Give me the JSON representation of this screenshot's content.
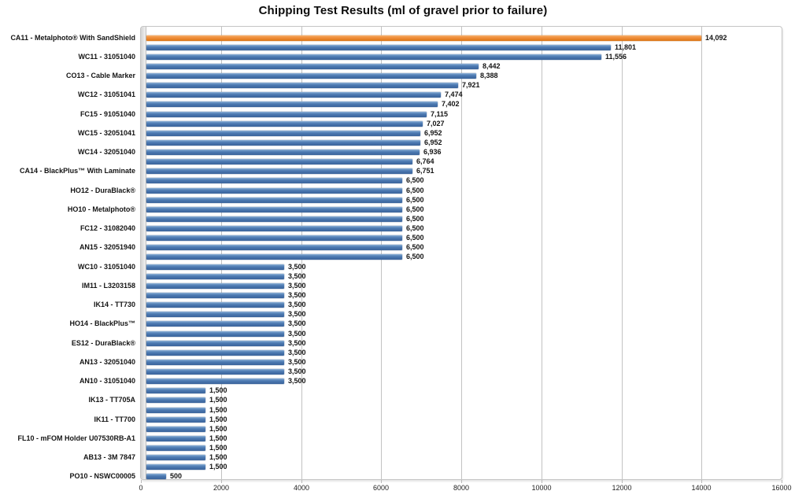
{
  "chart_data": {
    "type": "bar",
    "orientation": "horizontal",
    "title": "Chipping Test Results (ml of gravel prior to failure)",
    "xlabel": "",
    "ylabel": "",
    "xlim": [
      0,
      16000
    ],
    "x_ticks": [
      0,
      2000,
      4000,
      6000,
      8000,
      10000,
      12000,
      14000,
      16000
    ],
    "grid": true,
    "legend": false,
    "value_labels": true,
    "colors": {
      "bar_default": "#4A77B0",
      "bar_highlight": "#EE8B36",
      "gridline": "#C2C2C2",
      "axis_text": "#222222"
    },
    "bars": [
      {
        "label": "CA11 - Metalphoto® With SandShield",
        "value": 14092,
        "highlight": true
      },
      {
        "label": "",
        "value": 11801
      },
      {
        "label": "WC11 - 31051040",
        "value": 11556
      },
      {
        "label": "",
        "value": 8442
      },
      {
        "label": "CO13 - Cable Marker",
        "value": 8388
      },
      {
        "label": "",
        "value": 7921
      },
      {
        "label": "WC12 - 31051041",
        "value": 7474
      },
      {
        "label": "",
        "value": 7402
      },
      {
        "label": "FC15 - 91051040",
        "value": 7115
      },
      {
        "label": "",
        "value": 7027
      },
      {
        "label": "WC15 - 32051041",
        "value": 6952
      },
      {
        "label": "",
        "value": 6952
      },
      {
        "label": "WC14 - 32051040",
        "value": 6936
      },
      {
        "label": "",
        "value": 6764
      },
      {
        "label": "CA14 - BlackPlus™ With Laminate",
        "value": 6751
      },
      {
        "label": "",
        "value": 6500
      },
      {
        "label": "HO12 - DuraBlack®",
        "value": 6500
      },
      {
        "label": "",
        "value": 6500
      },
      {
        "label": "HO10 - Metalphoto®",
        "value": 6500
      },
      {
        "label": "",
        "value": 6500
      },
      {
        "label": "FC12 - 31082040",
        "value": 6500
      },
      {
        "label": "",
        "value": 6500
      },
      {
        "label": "AN15 - 32051940",
        "value": 6500
      },
      {
        "label": "",
        "value": 6500
      },
      {
        "label": "WC10 - 31051040",
        "value": 3500
      },
      {
        "label": "",
        "value": 3500
      },
      {
        "label": "IM11 - L3203158",
        "value": 3500
      },
      {
        "label": "",
        "value": 3500
      },
      {
        "label": "IK14 - TT730",
        "value": 3500
      },
      {
        "label": "",
        "value": 3500
      },
      {
        "label": "HO14 - BlackPlus™",
        "value": 3500
      },
      {
        "label": "",
        "value": 3500
      },
      {
        "label": "ES12 - DuraBlack®",
        "value": 3500
      },
      {
        "label": "",
        "value": 3500
      },
      {
        "label": "AN13 - 32051040",
        "value": 3500
      },
      {
        "label": "",
        "value": 3500
      },
      {
        "label": "AN10 - 31051040",
        "value": 3500
      },
      {
        "label": "",
        "value": 1500
      },
      {
        "label": "IK13 - TT705A",
        "value": 1500
      },
      {
        "label": "",
        "value": 1500
      },
      {
        "label": "IK11 - TT700",
        "value": 1500
      },
      {
        "label": "",
        "value": 1500
      },
      {
        "label": "FL10 - mFOM Holder U07530RB-A1",
        "value": 1500
      },
      {
        "label": "",
        "value": 1500
      },
      {
        "label": "AB13 - 3M 7847",
        "value": 1500
      },
      {
        "label": "",
        "value": 1500
      },
      {
        "label": "PO10 - NSWC00005",
        "value": 500
      }
    ]
  }
}
